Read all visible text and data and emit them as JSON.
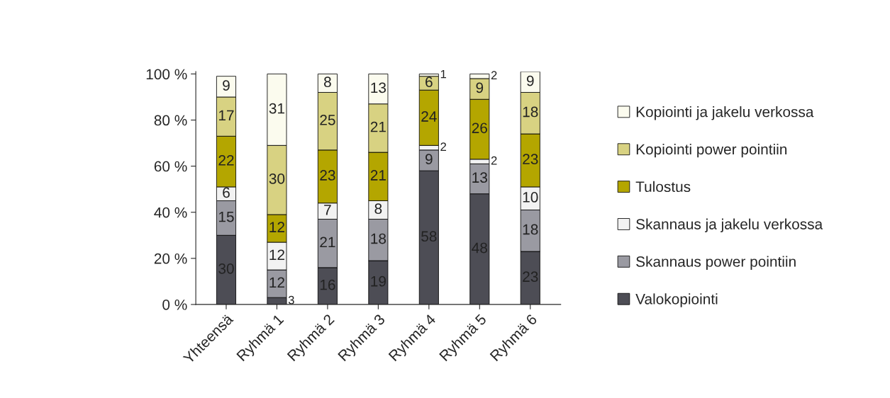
{
  "chart_data": {
    "type": "bar",
    "stacked": true,
    "data_labels": true,
    "legend": "right",
    "grid": false,
    "categories": [
      "Yhteensä",
      "Ryhmä 1",
      "Ryhmä 2",
      "Ryhmä 3",
      "Ryhmä 4",
      "Ryhmä 5",
      "Ryhmä 6"
    ],
    "ylim": [
      0,
      101
    ],
    "yticks": [
      {
        "value": 0,
        "label": "0 %"
      },
      {
        "value": 20,
        "label": "20 %"
      },
      {
        "value": 40,
        "label": "40 %"
      },
      {
        "value": 60,
        "label": "60 %"
      },
      {
        "value": 80,
        "label": "80 %"
      },
      {
        "value": 100,
        "label": "100 %"
      }
    ],
    "series": [
      {
        "name": "Valokopiointi",
        "color": "#4d4d55",
        "values": [
          30,
          3,
          16,
          19,
          58,
          48,
          23
        ]
      },
      {
        "name": "Skannaus power pointiin",
        "color": "#9a9aa2",
        "values": [
          15,
          12,
          21,
          18,
          9,
          13,
          18
        ]
      },
      {
        "name": "Skannaus ja jakelu verkossa",
        "color": "#f2f2f2",
        "values": [
          6,
          12,
          7,
          8,
          2,
          2,
          10
        ]
      },
      {
        "name": "Tulostus",
        "color": "#b4a600",
        "values": [
          22,
          12,
          23,
          21,
          24,
          26,
          23
        ]
      },
      {
        "name": "Kopiointi power pointiin",
        "color": "#d8d282",
        "values": [
          17,
          30,
          25,
          21,
          6,
          9,
          18
        ]
      },
      {
        "name": "Kopiointi ja jakelu verkossa",
        "color": "#fbfbee",
        "values": [
          9,
          31,
          8,
          13,
          1,
          2,
          9
        ]
      }
    ]
  }
}
